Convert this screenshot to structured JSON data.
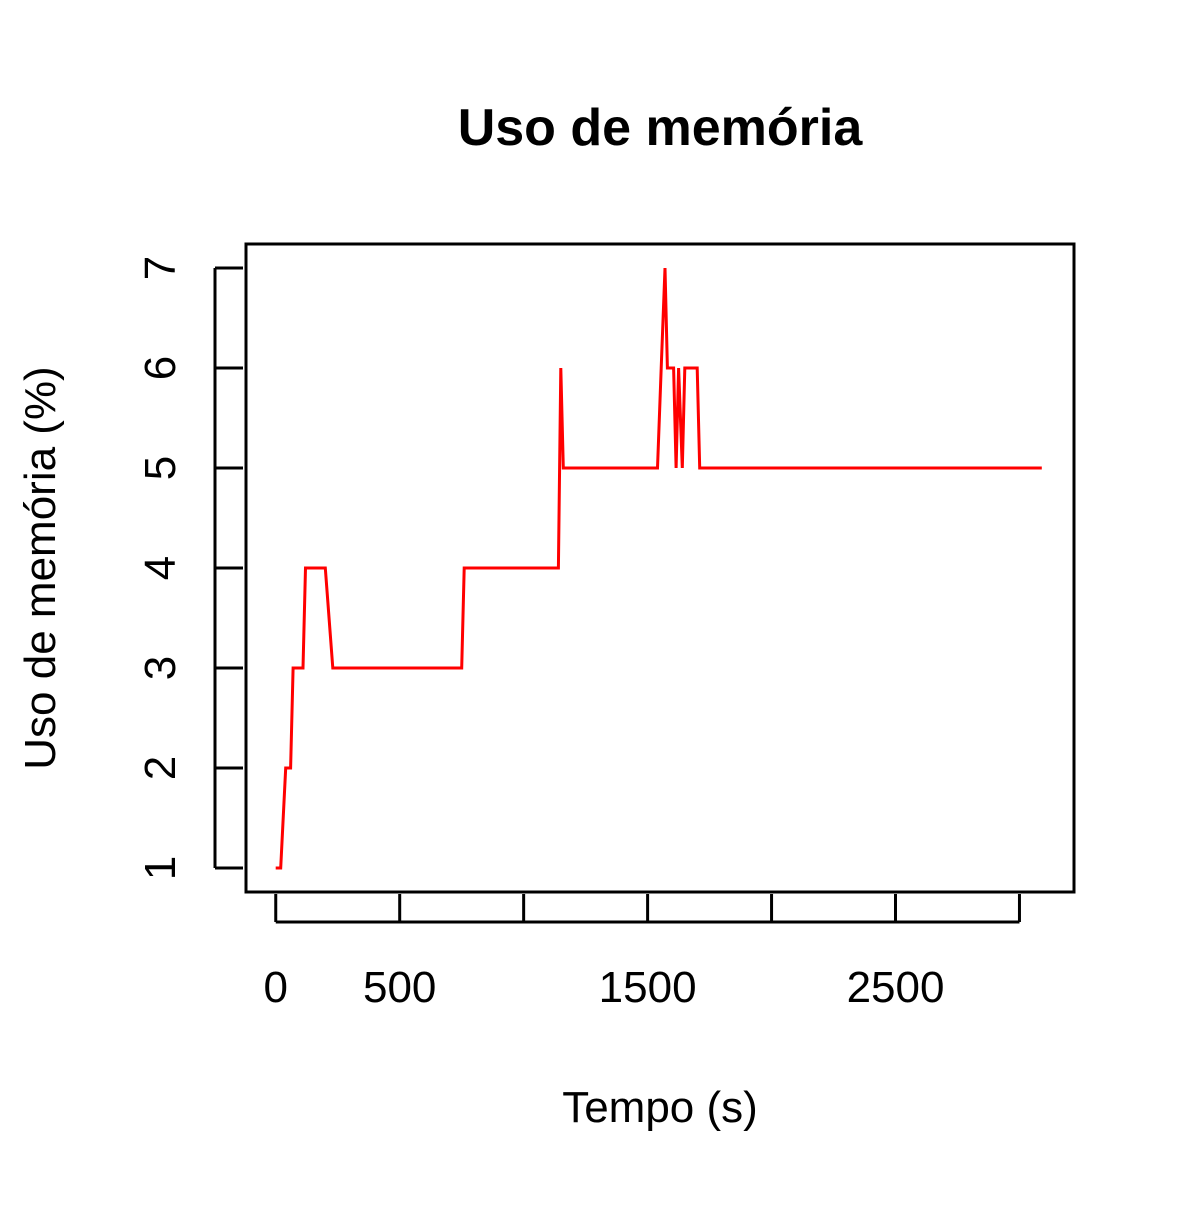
{
  "chart_data": {
    "type": "line",
    "title": "Uso de memória",
    "xlabel": "Tempo (s)",
    "ylabel": "Uso de memória (%)",
    "xlim": [
      -120,
      3220
    ],
    "ylim": [
      0.76,
      7.24
    ],
    "xticks": [
      0,
      500,
      1000,
      1500,
      2000,
      2500,
      3000
    ],
    "xtick_labels": [
      "0",
      "500",
      "",
      "1500",
      "",
      "2500",
      ""
    ],
    "yticks": [
      1,
      2,
      3,
      4,
      5,
      6,
      7
    ],
    "ytick_labels": [
      "1",
      "2",
      "3",
      "4",
      "5",
      "6",
      "7"
    ],
    "grid": false,
    "series": [
      {
        "color": "#ff0000",
        "x": [
          0,
          20,
          40,
          60,
          70,
          110,
          120,
          200,
          230,
          500,
          750,
          760,
          1000,
          1140,
          1150,
          1160,
          1500,
          1540,
          1555,
          1570,
          1580,
          1605,
          1615,
          1625,
          1640,
          1650,
          1660,
          1700,
          1710,
          2000,
          2500,
          3000,
          3090
        ],
        "y": [
          1,
          1,
          2,
          2,
          3,
          3,
          4,
          4,
          3,
          3,
          3,
          4,
          4,
          4,
          6,
          5,
          5,
          5,
          6,
          7,
          6,
          6,
          5,
          6,
          5,
          6,
          6,
          6,
          5,
          5,
          5,
          5,
          5
        ]
      }
    ]
  }
}
